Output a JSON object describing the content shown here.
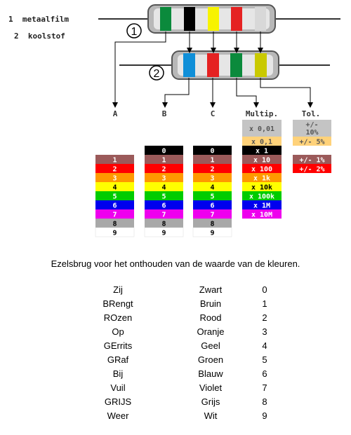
{
  "legend": [
    {
      "num": "1",
      "label": "metaalfilm"
    },
    {
      "num": "2",
      "label": "koolstof"
    }
  ],
  "resistor_numbers": [
    "1",
    "2"
  ],
  "resistor1_bands": [
    "#0b8a3c",
    "#000000",
    "#f7f300",
    "#e52222",
    "#d8d8d8"
  ],
  "resistor2_bands": [
    "#0f8fd8",
    "#e52222",
    "#0b8a3c",
    "#c9c900"
  ],
  "column_letters": [
    "A",
    "B",
    "C"
  ],
  "multip_header": "Multip.",
  "tol_header": "Tol.",
  "colors": {
    "black": "#000000",
    "brown": "#9b5a5a",
    "red": "#ff0000",
    "orange": "#ff9900",
    "yellow": "#ffff00",
    "green": "#00cc00",
    "blue": "#0000ee",
    "violet": "#ee00ee",
    "grey": "#a8a8a8",
    "white": "#ffffff",
    "silver": "#c4c4c4",
    "gold": "#ffd27a"
  },
  "digit_rows": [
    {
      "value": "0",
      "color": "black"
    },
    {
      "value": "1",
      "color": "brown"
    },
    {
      "value": "2",
      "color": "red"
    },
    {
      "value": "3",
      "color": "orange"
    },
    {
      "value": "4",
      "color": "yellow"
    },
    {
      "value": "5",
      "color": "green"
    },
    {
      "value": "6",
      "color": "blue"
    },
    {
      "value": "7",
      "color": "violet"
    },
    {
      "value": "8",
      "color": "grey"
    },
    {
      "value": "9",
      "color": "white"
    }
  ],
  "multiplier_rows": [
    {
      "value": "x 0,01",
      "color": "silver"
    },
    {
      "value": "x 0,1",
      "color": "gold"
    },
    {
      "value": "x 1",
      "color": "black"
    },
    {
      "value": "x 10",
      "color": "brown"
    },
    {
      "value": "x 100",
      "color": "red"
    },
    {
      "value": "x 1k",
      "color": "orange"
    },
    {
      "value": "x 10k",
      "color": "yellow"
    },
    {
      "value": "x 100k",
      "color": "green"
    },
    {
      "value": "x 1M",
      "color": "blue"
    },
    {
      "value": "x 10M",
      "color": "violet"
    }
  ],
  "tolerance_rows": [
    {
      "value": "+/- 10%",
      "color": "silver"
    },
    {
      "value": "+/- 5%",
      "color": "gold"
    },
    {
      "value": "+/- 1%",
      "color": "brown"
    },
    {
      "value": "+/- 2%",
      "color": "red"
    }
  ],
  "mnemonic_title": "Ezelsbrug voor het onthouden van de waarde van de kleuren.",
  "mnemonic_rows": [
    {
      "word": "Zij",
      "color": "Zwart",
      "value": "0"
    },
    {
      "word": "BRengt",
      "color": "Bruin",
      "value": "1"
    },
    {
      "word": "ROzen",
      "color": "Rood",
      "value": "2"
    },
    {
      "word": "Op",
      "color": "Oranje",
      "value": "3"
    },
    {
      "word": "GErrits",
      "color": "Geel",
      "value": "4"
    },
    {
      "word": "GRaf",
      "color": "Groen",
      "value": "5"
    },
    {
      "word": "Bij",
      "color": "Blauw",
      "value": "6"
    },
    {
      "word": "Vuil",
      "color": "Violet",
      "value": "7"
    },
    {
      "word": "GRIJS",
      "color": "Grijs",
      "value": "8"
    },
    {
      "word": "Weer",
      "color": "Wit",
      "value": "9"
    }
  ]
}
